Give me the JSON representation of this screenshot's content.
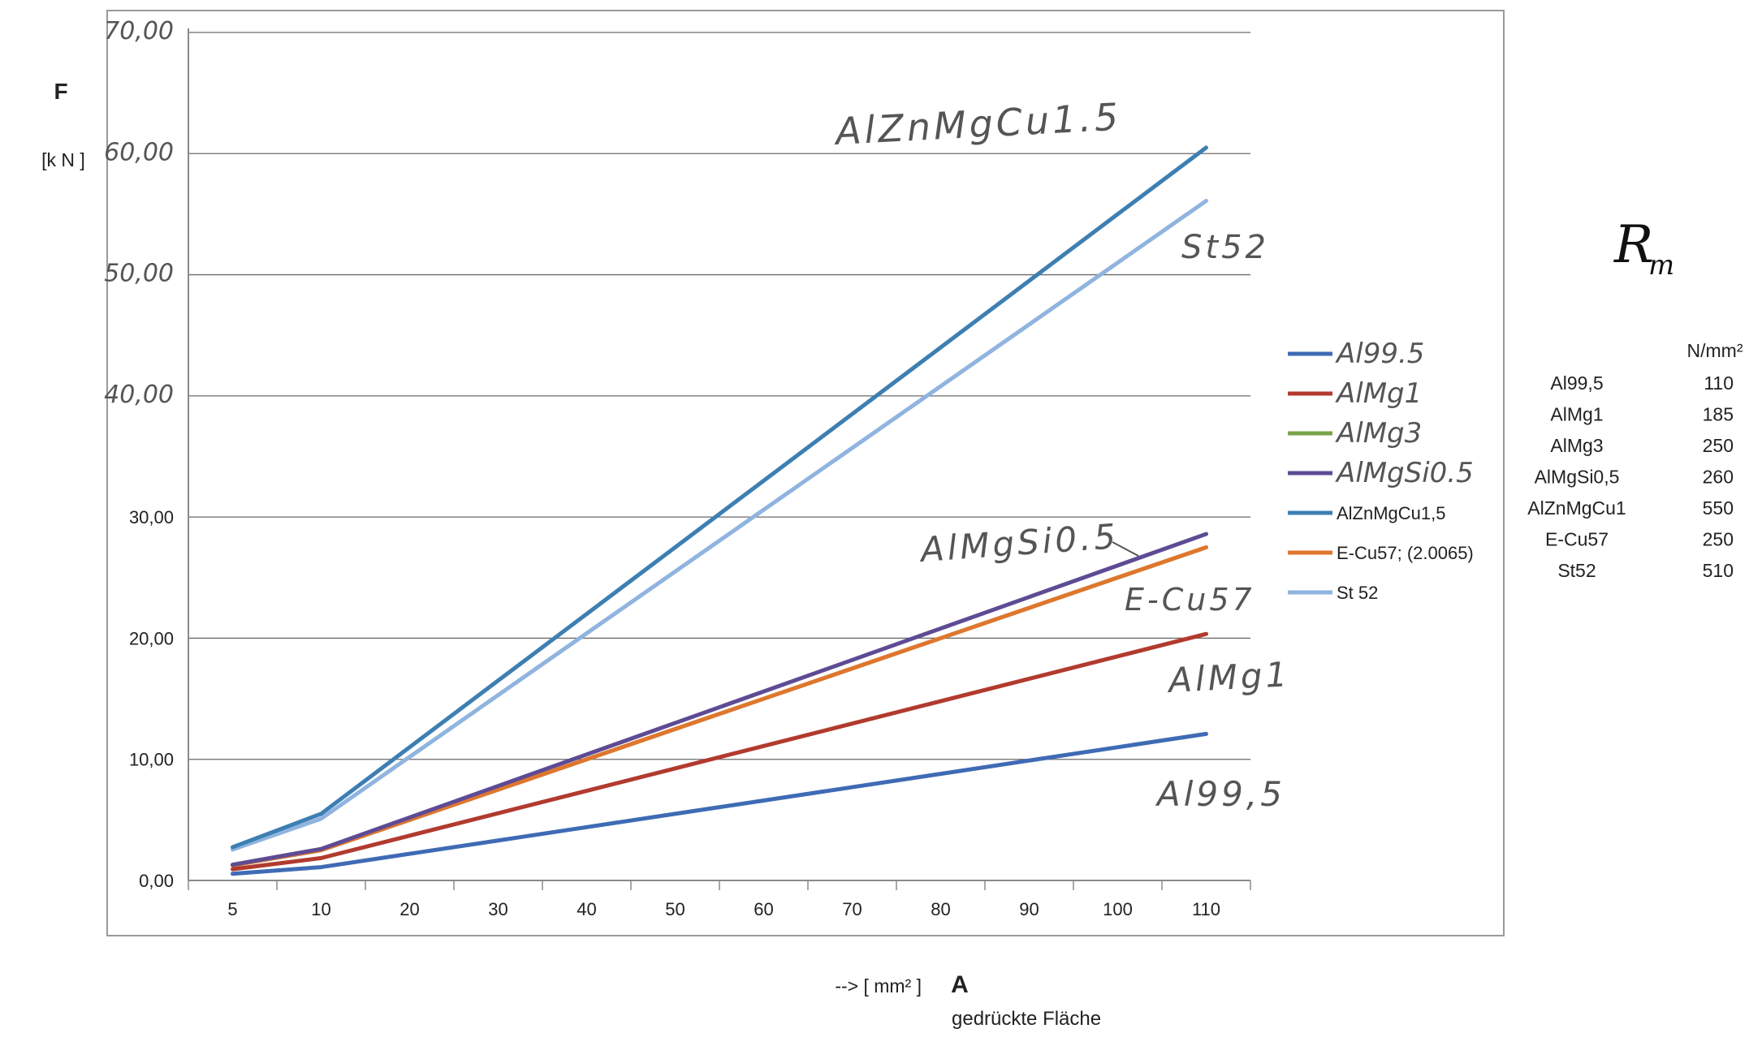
{
  "chart_data": {
    "type": "line",
    "y_axis_title": "F",
    "y_axis_unit": "[k N ]",
    "x_axis_prefix": "--> [ mm² ]",
    "x_axis_title": "A",
    "x_axis_subtitle": "gedrückte Fläche",
    "categories": [
      "5",
      "10",
      "20",
      "30",
      "40",
      "50",
      "60",
      "70",
      "80",
      "90",
      "100",
      "110"
    ],
    "ylim": [
      0,
      70
    ],
    "y_ticks": [
      "0,00",
      "10,00",
      "20,00",
      "30,00",
      "40,00",
      "50,00",
      "60,00",
      "70,00"
    ],
    "grid": true,
    "legend_position": "right",
    "series": [
      {
        "name": "Al99.5",
        "color": "#3f6bb5",
        "handwritten": true,
        "values": [
          0.55,
          1.1,
          2.2,
          3.3,
          4.4,
          5.5,
          6.6,
          7.7,
          8.8,
          9.9,
          11.0,
          12.1
        ]
      },
      {
        "name": "AlMg1",
        "color": "#b23a2e",
        "handwritten": true,
        "values": [
          0.93,
          1.85,
          3.7,
          5.55,
          7.4,
          9.25,
          11.1,
          12.95,
          14.8,
          16.65,
          18.5,
          20.35
        ]
      },
      {
        "name": "AlMg3",
        "color": "#7aa34a",
        "handwritten": true,
        "values": [
          1.25,
          2.5,
          5.0,
          7.5,
          10.0,
          12.5,
          15.0,
          17.5,
          20.0,
          22.5,
          25.0,
          27.5
        ]
      },
      {
        "name": "AlMgSi0.5",
        "color": "#5e4b94",
        "handwritten": true,
        "values": [
          1.3,
          2.6,
          5.2,
          7.8,
          10.4,
          13.0,
          15.6,
          18.2,
          20.8,
          23.4,
          26.0,
          28.6
        ]
      },
      {
        "name": "AlZnMgCu1,5",
        "color": "#3d7fb2",
        "handwritten": false,
        "values": [
          2.75,
          5.5,
          11.0,
          16.5,
          22.0,
          27.5,
          33.0,
          38.5,
          44.0,
          49.5,
          55.0,
          60.5
        ]
      },
      {
        "name": "E-Cu57; (2.0065)",
        "color": "#e0762e",
        "handwritten": false,
        "values": [
          1.25,
          2.5,
          5.0,
          7.5,
          10.0,
          12.5,
          15.0,
          17.5,
          20.0,
          22.5,
          25.0,
          27.5
        ]
      },
      {
        "name": "St 52",
        "color": "#8fb4df",
        "handwritten": false,
        "values": [
          2.55,
          5.1,
          10.2,
          15.3,
          20.4,
          25.5,
          30.6,
          35.7,
          40.8,
          45.9,
          51.0,
          56.1
        ]
      }
    ],
    "annotations": [
      {
        "text": "AlZnMgCu1.5",
        "series": "AlZnMgCu1,5"
      },
      {
        "text": "St52",
        "series": "St 52"
      },
      {
        "text": "AlMgSi0.5",
        "series": "AlMgSi0.5"
      },
      {
        "text": "E-Cu57",
        "series": "E-Cu57; (2.0065)"
      },
      {
        "text": "AlMg1",
        "series": "AlMg1"
      },
      {
        "text": "Al99,5",
        "series": "Al99.5"
      }
    ]
  },
  "strength_table": {
    "symbol": "R",
    "symbol_sub": "m",
    "unit": "N/mm²",
    "rows": [
      {
        "material": "Al99,5",
        "value": "110"
      },
      {
        "material": "AlMg1",
        "value": "185"
      },
      {
        "material": "AlMg3",
        "value": "250"
      },
      {
        "material": "AlMgSi0,5",
        "value": "260"
      },
      {
        "material": "AlZnMgCu1",
        "value": "550"
      },
      {
        "material": "E-Cu57",
        "value": "250"
      },
      {
        "material": "St52",
        "value": "510"
      }
    ]
  }
}
